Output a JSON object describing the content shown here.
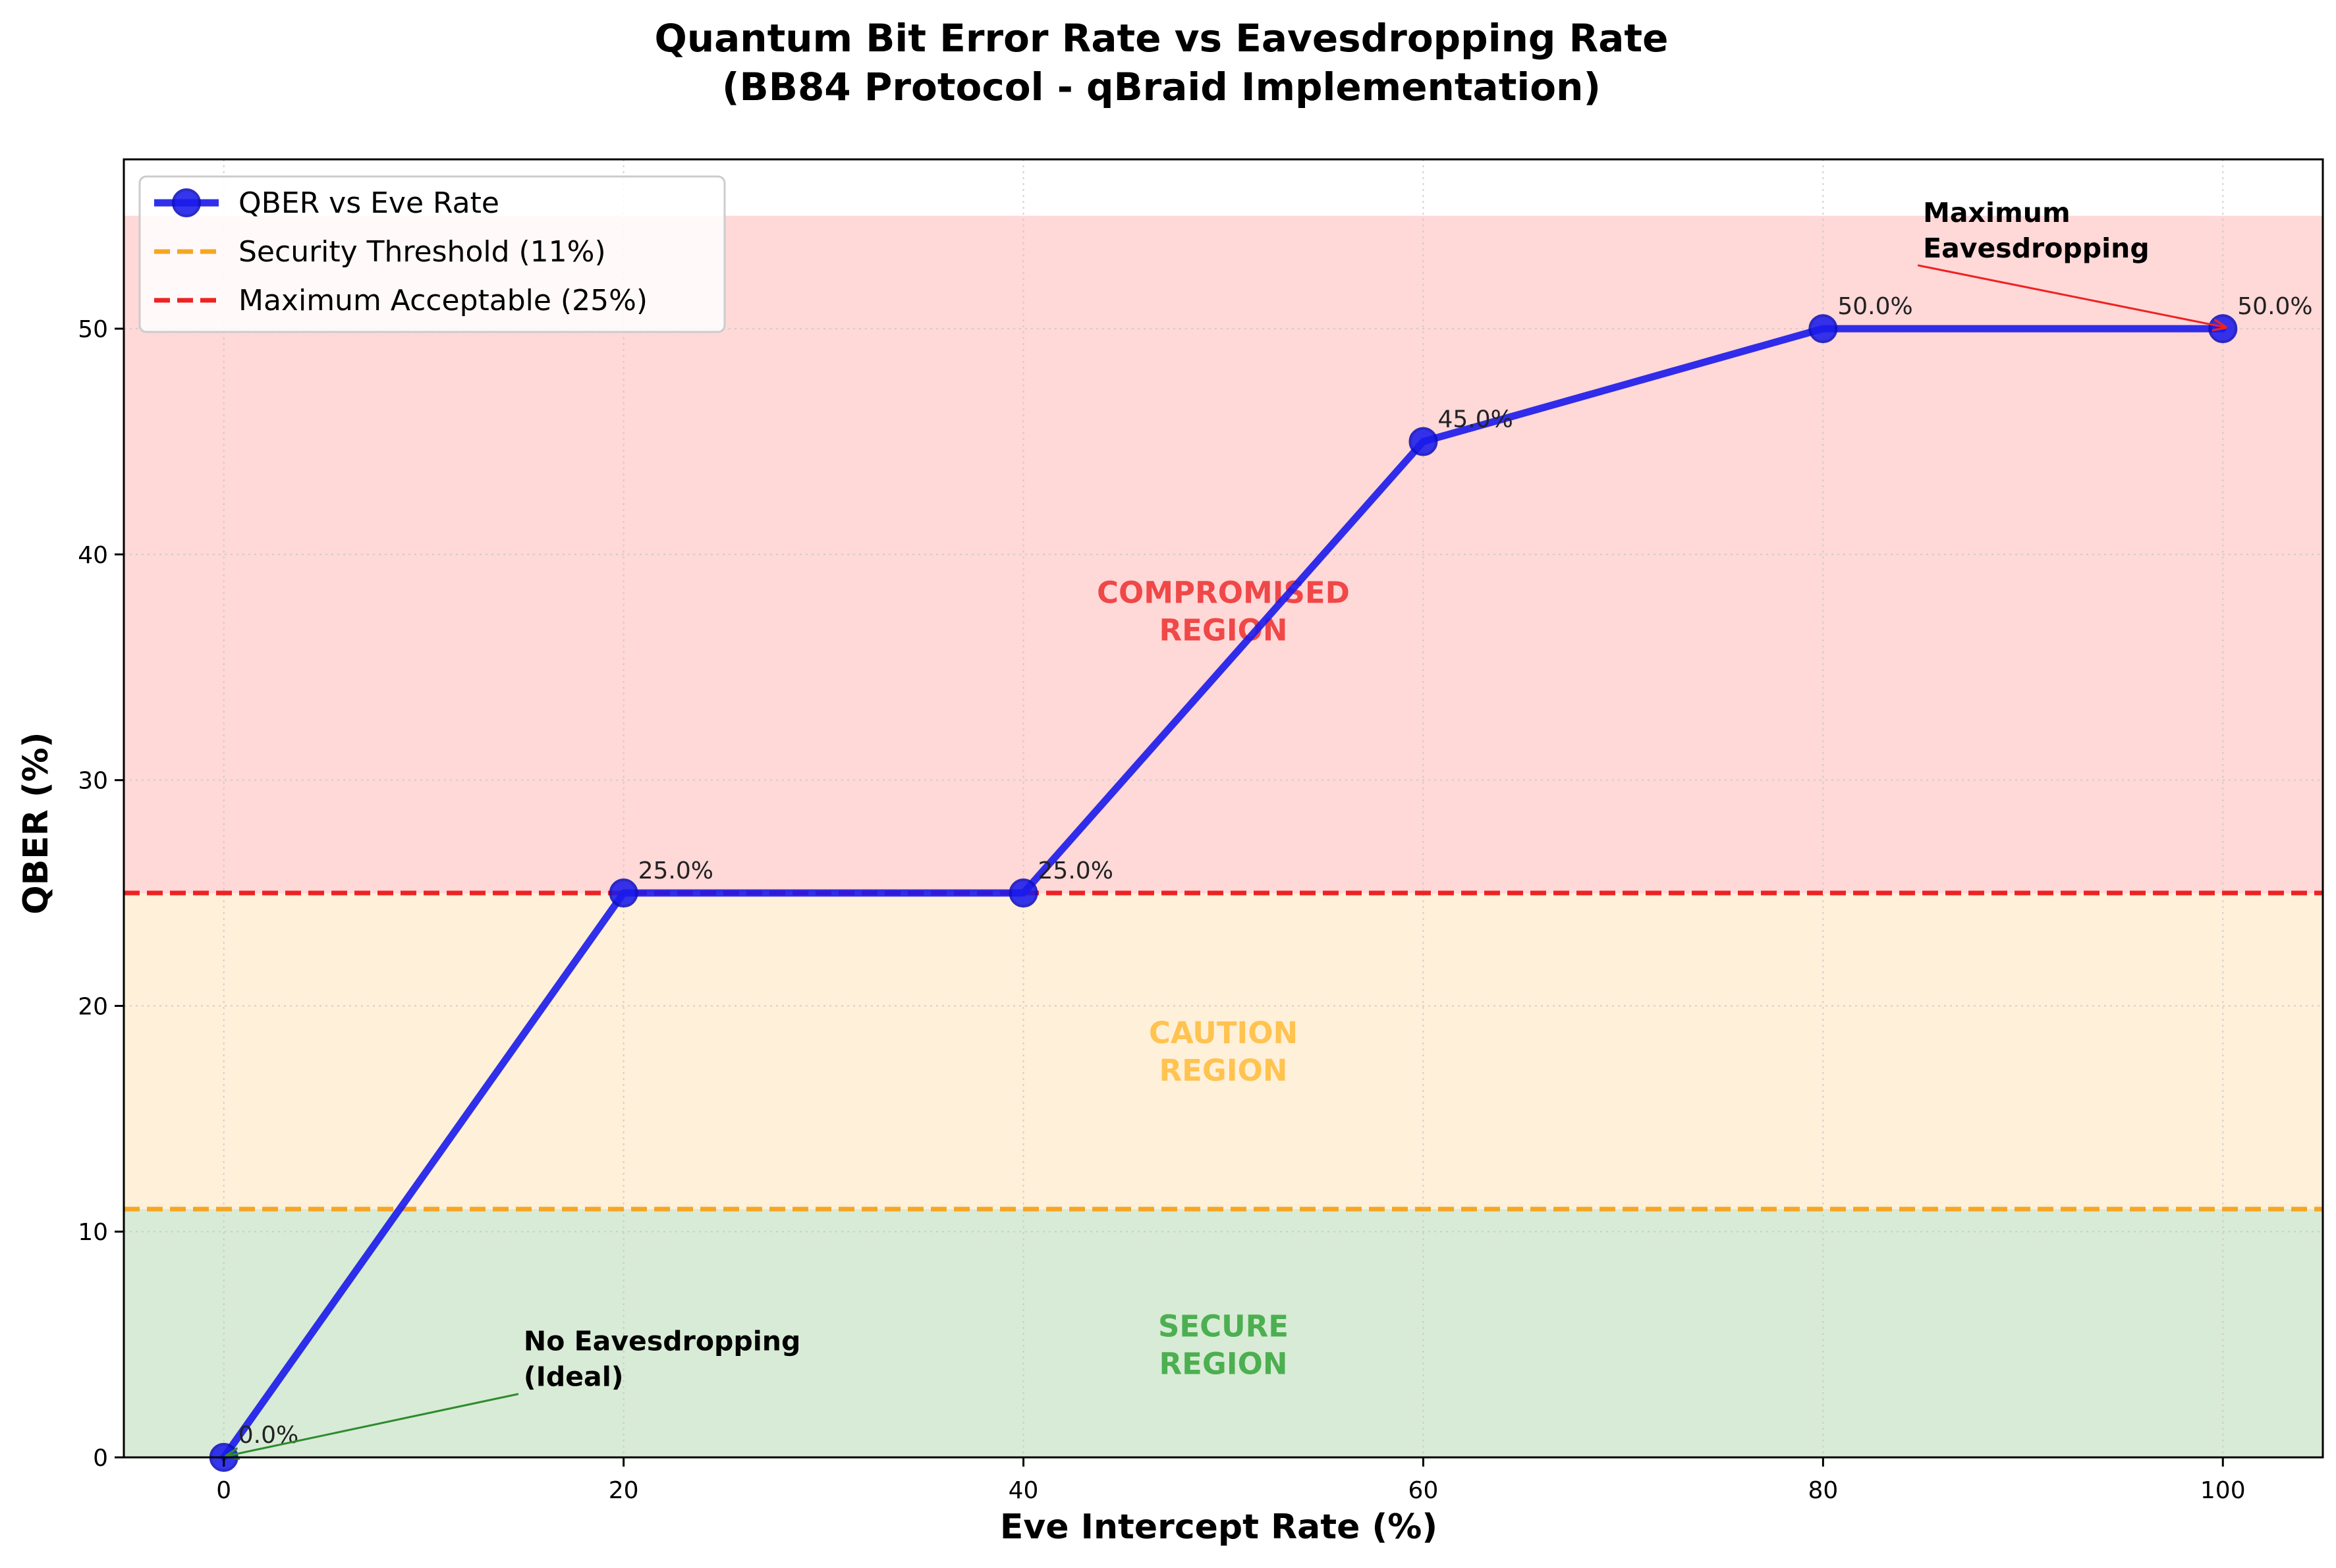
{
  "chart_data": {
    "type": "line",
    "title_line1": "Quantum Bit Error Rate vs Eavesdropping Rate",
    "title_line2": "(BB84 Protocol - qBraid Implementation)",
    "xlabel": "Eve Intercept Rate (%)",
    "ylabel": "QBER (%)",
    "xlim": [
      -5,
      105
    ],
    "ylim": [
      0,
      57.5
    ],
    "x_ticks": [
      0,
      20,
      40,
      60,
      80,
      100
    ],
    "y_ticks": [
      0,
      10,
      20,
      30,
      40,
      50
    ],
    "grid": true,
    "legend_position": "upper-left",
    "series": [
      {
        "name": "QBER vs Eve Rate",
        "color": "#1a1aeb",
        "x": [
          0,
          20,
          40,
          60,
          80,
          100
        ],
        "y": [
          0.0,
          25.0,
          25.0,
          45.0,
          50.0,
          50.0
        ],
        "point_labels": [
          "0.0%",
          "25.0%",
          "25.0%",
          "45.0%",
          "50.0%",
          "50.0%"
        ]
      }
    ],
    "threshold_lines": [
      {
        "name": "Security Threshold (11%)",
        "y": 11,
        "color": "#f5a623"
      },
      {
        "name": "Maximum Acceptable (25%)",
        "y": 25,
        "color": "#ee2222"
      }
    ],
    "regions": [
      {
        "label_line1": "SECURE",
        "label_line2": "REGION",
        "y0": 0,
        "y1": 11,
        "fill": "#d8ebd6",
        "text_color": "#4caf50",
        "label_x": 50,
        "label_y": 5
      },
      {
        "label_line1": "CAUTION",
        "label_line2": "REGION",
        "y0": 11,
        "y1": 25,
        "fill": "#fff0d9",
        "text_color": "#ffc350",
        "label_x": 50,
        "label_y": 18
      },
      {
        "label_line1": "COMPROMISED",
        "label_line2": "REGION",
        "y0": 25,
        "y1": 55,
        "fill": "#ffd8d8",
        "text_color": "#f04848",
        "label_x": 50,
        "label_y": 37.5
      }
    ],
    "annotations": [
      {
        "text_line1": "No Eavesdropping",
        "text_line2": "(Ideal)",
        "text_x": 15,
        "text_y": 4.5,
        "point_x": 0,
        "point_y": 0,
        "color": "#2e8b2e"
      },
      {
        "text_line1": "Maximum",
        "text_line2": "Eavesdropping",
        "text_x": 85,
        "text_y": 54.5,
        "point_x": 100,
        "point_y": 50,
        "color": "#ee2222"
      }
    ]
  }
}
